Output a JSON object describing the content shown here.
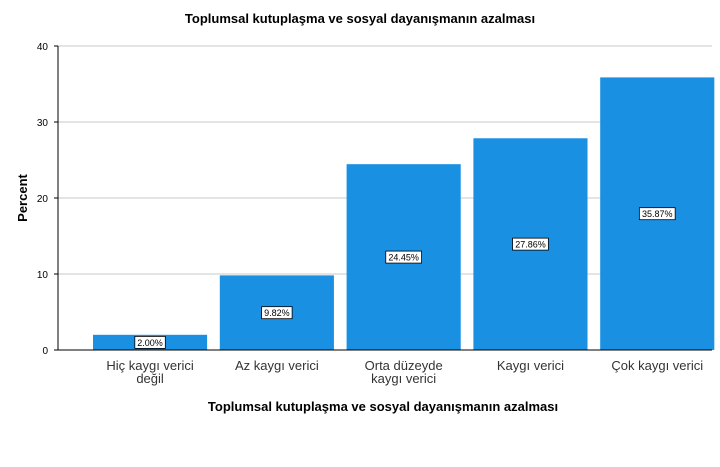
{
  "chart_data": {
    "type": "bar",
    "title": "Toplumsal kutuplaşma ve sosyal dayanışmanın azalması",
    "xlabel": "Toplumsal kutuplaşma ve sosyal dayanışmanın azalması",
    "ylabel": "Percent",
    "categories": [
      [
        "Hiç kaygı verici",
        "değil"
      ],
      [
        "Az kaygı verici"
      ],
      [
        "Orta düzeyde",
        "kaygı verici"
      ],
      [
        "Kaygı verici"
      ],
      [
        "Çok kaygı verici"
      ]
    ],
    "values": [
      2.0,
      9.82,
      24.45,
      27.86,
      35.87
    ],
    "data_labels": [
      "2.00%",
      "9.82%",
      "24.45%",
      "27.86%",
      "35.87%"
    ],
    "ylim": [
      0,
      40
    ],
    "yticks": [
      0,
      10,
      20,
      30,
      40
    ],
    "grid": true,
    "bar_color": "#1a90e3"
  }
}
